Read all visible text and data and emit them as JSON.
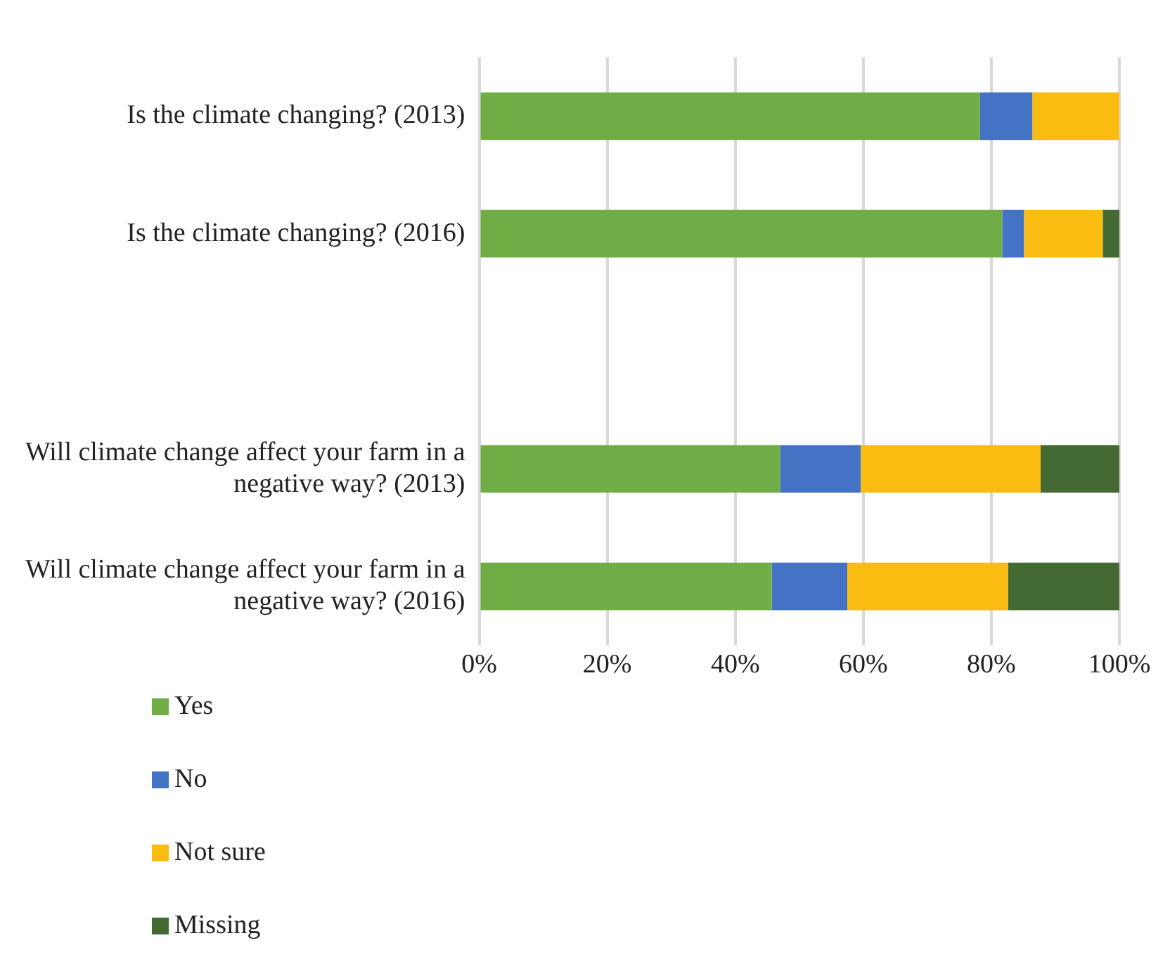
{
  "chart_data": {
    "type": "bar",
    "orientation": "horizontal",
    "stacked": true,
    "categories": [
      "Is the climate changing? (2013)",
      "Is the climate changing? (2016)",
      null,
      "Will climate change affect your farm in a negative way? (2013)",
      "Will climate change affect your farm in a negative way? (2016)"
    ],
    "series": [
      {
        "name": "Yes",
        "color": "#70ad47",
        "values": [
          78.2,
          81.7,
          null,
          47,
          45.7
        ]
      },
      {
        "name": "No",
        "color": "#4472c4",
        "values": [
          8.2,
          3.4,
          null,
          12.6,
          11.8
        ]
      },
      {
        "name": "Not sure",
        "color": "#fbbc12",
        "values": [
          13.6,
          12.3,
          null,
          28.1,
          25.1
        ]
      },
      {
        "name": "Missing",
        "color": "#436a32",
        "values": [
          0,
          2.6,
          null,
          12.3,
          17.4
        ]
      }
    ],
    "xlim": [
      0,
      100
    ],
    "xticks": [
      {
        "value": 0,
        "label": "0%"
      },
      {
        "value": 20,
        "label": "20%"
      },
      {
        "value": 40,
        "label": "40%"
      },
      {
        "value": 60,
        "label": "60%"
      },
      {
        "value": 80,
        "label": "80%"
      },
      {
        "value": 100,
        "label": "100%"
      }
    ],
    "grid": "x",
    "legend": "bottom left"
  }
}
